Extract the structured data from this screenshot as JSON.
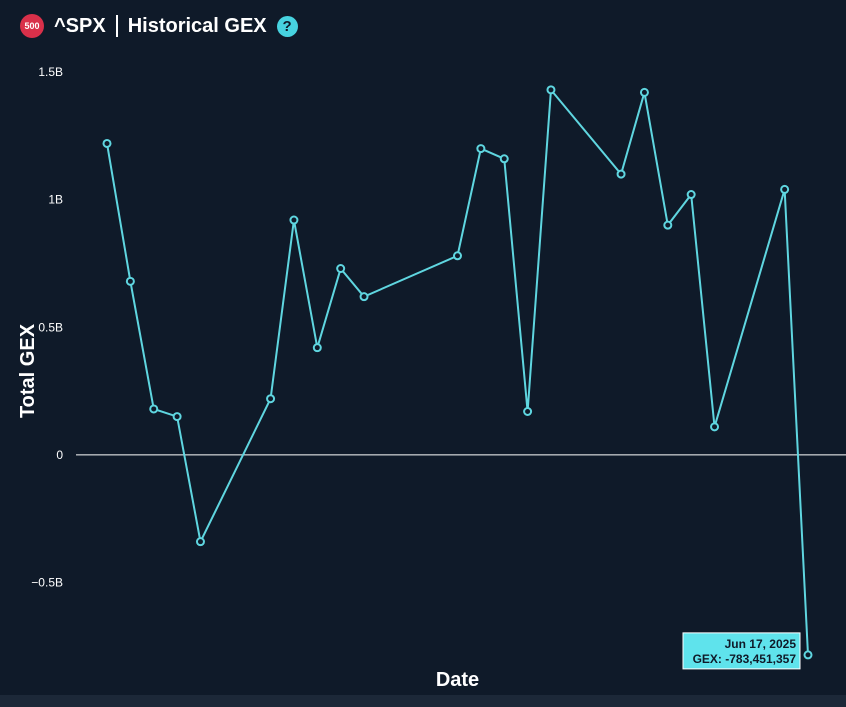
{
  "header": {
    "badge": "500",
    "ticker": "^SPX",
    "title": "Historical GEX",
    "help_glyph": "?"
  },
  "colors": {
    "background": "#0f1a29",
    "line": "#5fd6e0",
    "marker": "#5fd6e0",
    "zero_line": "#ffffff",
    "tooltip_bg": "#5fe3ec",
    "badge": "#d9304a"
  },
  "chart_data": {
    "type": "line",
    "xlabel": "Date",
    "ylabel": "Total GEX",
    "ylim": [
      -0.78,
      1.5
    ],
    "yticks": [
      {
        "value": 1.5,
        "label": "1.5B"
      },
      {
        "value": 1.0,
        "label": "1B"
      },
      {
        "value": 0.5,
        "label": "0.5B"
      },
      {
        "value": 0.0,
        "label": "0"
      },
      {
        "value": -0.5,
        "label": "−0.5B"
      }
    ],
    "xlim": [
      1,
      31
    ],
    "series": [
      {
        "values_billions": [
          {
            "x": 1,
            "y": 1.22
          },
          {
            "x": 2,
            "y": 0.68
          },
          {
            "x": 3,
            "y": 0.18
          },
          {
            "x": 4,
            "y": 0.15
          },
          {
            "x": 5,
            "y": -0.34
          },
          {
            "x": 8,
            "y": 0.22
          },
          {
            "x": 9,
            "y": 0.92
          },
          {
            "x": 10,
            "y": 0.42
          },
          {
            "x": 11,
            "y": 0.73
          },
          {
            "x": 12,
            "y": 0.62
          },
          {
            "x": 16,
            "y": 0.78
          },
          {
            "x": 17,
            "y": 1.2
          },
          {
            "x": 18,
            "y": 1.16
          },
          {
            "x": 19,
            "y": 0.17
          },
          {
            "x": 20,
            "y": 1.43
          },
          {
            "x": 23,
            "y": 1.1
          },
          {
            "x": 24,
            "y": 1.42
          },
          {
            "x": 25,
            "y": 0.9
          },
          {
            "x": 26,
            "y": 1.02
          },
          {
            "x": 27,
            "y": 0.11
          },
          {
            "x": 30,
            "y": 1.04
          },
          {
            "x": 31,
            "y": -0.783451357
          }
        ]
      }
    ],
    "grid": false,
    "zero_line": true,
    "tooltip": {
      "date": "Jun 17, 2025",
      "value_text": "GEX: -783,451,357",
      "point_index": 21
    }
  }
}
